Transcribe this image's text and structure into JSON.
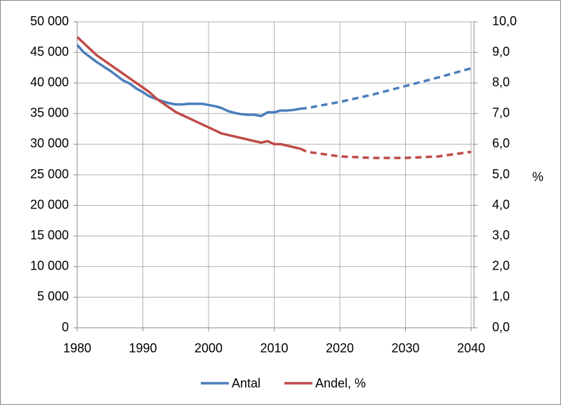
{
  "chart_data": {
    "type": "line",
    "x": [
      1980,
      1981,
      1982,
      1983,
      1984,
      1985,
      1986,
      1987,
      1988,
      1989,
      1990,
      1991,
      1992,
      1993,
      1994,
      1995,
      1996,
      1997,
      1998,
      1999,
      2000,
      2001,
      2002,
      2003,
      2004,
      2005,
      2006,
      2007,
      2008,
      2009,
      2010,
      2011,
      2012,
      2013,
      2014,
      2015,
      2020,
      2025,
      2030,
      2035,
      2040
    ],
    "dashed_after_x": 2014,
    "series": [
      {
        "name": "Antal",
        "color": "#4a7ebb",
        "axis": "y",
        "values": [
          46200,
          45000,
          44200,
          43400,
          42700,
          42000,
          41200,
          40400,
          39900,
          39100,
          38500,
          37800,
          37400,
          37000,
          36700,
          36500,
          36500,
          36600,
          36600,
          36600,
          36400,
          36200,
          35900,
          35400,
          35100,
          34900,
          34800,
          34800,
          34600,
          35200,
          35200,
          35500,
          35500,
          35600,
          35800,
          35900,
          36900,
          38100,
          39500,
          40900,
          42400
        ]
      },
      {
        "name": "Andel, %",
        "color": "#be4b48",
        "axis": "y2",
        "values": [
          9.5,
          9.3,
          9.1,
          8.9,
          8.75,
          8.6,
          8.45,
          8.3,
          8.15,
          8.0,
          7.85,
          7.7,
          7.5,
          7.35,
          7.2,
          7.05,
          6.95,
          6.85,
          6.75,
          6.65,
          6.55,
          6.45,
          6.35,
          6.3,
          6.25,
          6.2,
          6.15,
          6.1,
          6.05,
          6.1,
          6.0,
          6.0,
          5.95,
          5.9,
          5.85,
          5.75,
          5.6,
          5.55,
          5.55,
          5.6,
          5.75
        ]
      }
    ],
    "xlim": [
      1980,
      2040
    ],
    "xticks": [
      1980,
      1990,
      2000,
      2010,
      2020,
      2030,
      2040
    ],
    "ylim": [
      0,
      50000
    ],
    "yticks": [
      {
        "value": 0,
        "label": "0"
      },
      {
        "value": 5000,
        "label": "5 000"
      },
      {
        "value": 10000,
        "label": "10 000"
      },
      {
        "value": 15000,
        "label": "15 000"
      },
      {
        "value": 20000,
        "label": "20 000"
      },
      {
        "value": 25000,
        "label": "25 000"
      },
      {
        "value": 30000,
        "label": "30 000"
      },
      {
        "value": 35000,
        "label": "35 000"
      },
      {
        "value": 40000,
        "label": "40 000"
      },
      {
        "value": 45000,
        "label": "45 000"
      },
      {
        "value": 50000,
        "label": "50 000"
      }
    ],
    "y2lim": [
      0,
      10
    ],
    "y2ticks": [
      {
        "value": 0,
        "label": "0,0"
      },
      {
        "value": 1,
        "label": "1,0"
      },
      {
        "value": 2,
        "label": "2,0"
      },
      {
        "value": 3,
        "label": "3,0"
      },
      {
        "value": 4,
        "label": "4,0"
      },
      {
        "value": 5,
        "label": "5,0"
      },
      {
        "value": 6,
        "label": "6,0"
      },
      {
        "value": 7,
        "label": "7,0"
      },
      {
        "value": 8,
        "label": "8,0"
      },
      {
        "value": 9,
        "label": "9,0"
      },
      {
        "value": 10,
        "label": "10,0"
      }
    ],
    "y2_label": "%",
    "grid": true,
    "legend": "bottom"
  }
}
